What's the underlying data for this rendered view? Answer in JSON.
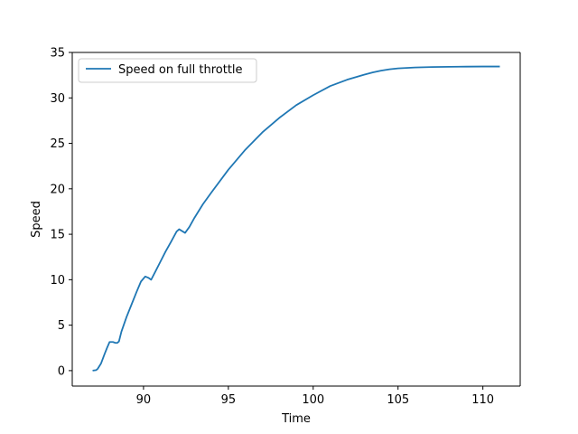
{
  "chart_data": {
    "type": "line",
    "xlabel": "Time",
    "ylabel": "Speed",
    "xlim": [
      85.8,
      112.2
    ],
    "ylim": [
      -1.7,
      35
    ],
    "xticks": [
      90,
      95,
      100,
      105,
      110
    ],
    "yticks": [
      0,
      5,
      10,
      15,
      20,
      25,
      30,
      35
    ],
    "grid": false,
    "legend_position": "top-left",
    "series": [
      {
        "name": "Speed on full throttle",
        "color": "#1f77b4",
        "x": [
          87.0,
          87.2,
          87.3,
          87.5,
          87.7,
          87.85,
          88.0,
          88.2,
          88.35,
          88.45,
          88.55,
          88.7,
          89.0,
          89.3,
          89.6,
          89.85,
          90.1,
          90.3,
          90.45,
          90.7,
          91.0,
          91.3,
          91.6,
          91.95,
          92.1,
          92.45,
          92.7,
          93.0,
          93.5,
          94.0,
          95.0,
          96.0,
          97.0,
          98.0,
          99.0,
          100.0,
          101.0,
          102.0,
          103.0,
          103.5,
          104.0,
          104.5,
          105.0,
          106.0,
          107.0,
          108.0,
          109.0,
          110.0,
          111.0
        ],
        "values": [
          0,
          0.05,
          0.2,
          0.8,
          1.8,
          2.5,
          3.15,
          3.15,
          3.05,
          3.05,
          3.2,
          4.3,
          5.9,
          7.3,
          8.7,
          9.8,
          10.35,
          10.2,
          10.0,
          10.9,
          12.0,
          13.1,
          14.1,
          15.3,
          15.55,
          15.15,
          15.8,
          16.8,
          18.3,
          19.6,
          22.1,
          24.3,
          26.2,
          27.8,
          29.2,
          30.3,
          31.3,
          32.0,
          32.55,
          32.8,
          33.0,
          33.15,
          33.25,
          33.35,
          33.4,
          33.42,
          33.44,
          33.45,
          33.45
        ]
      }
    ]
  }
}
